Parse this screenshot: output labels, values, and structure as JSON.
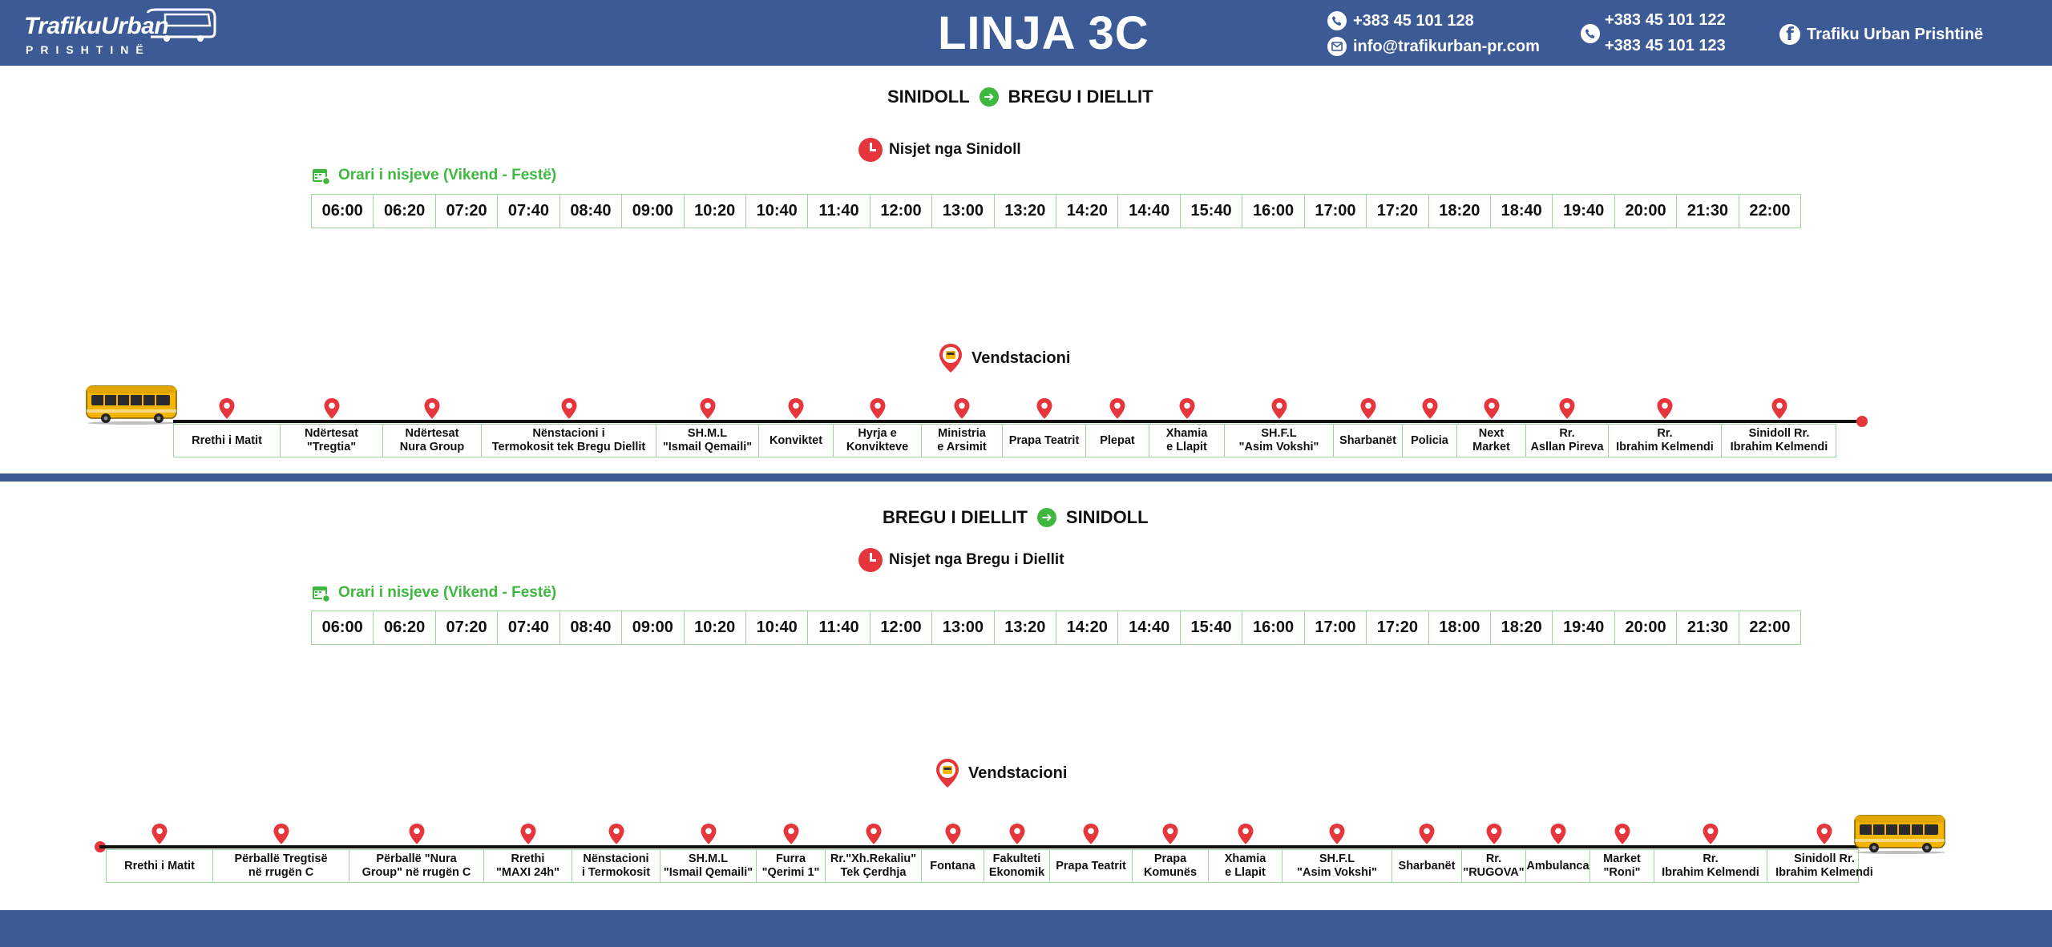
{
  "header": {
    "logo_main": "TrafikuUrban",
    "logo_sub": "PRISHTINË",
    "title": "LINJA 3C",
    "phone_1": "+383 45 101 128",
    "email": "info@trafikurban-pr.com",
    "viber_phone_1": "+383 45 101 122",
    "viber_phone_2": "+383 45 101 123",
    "facebook": "Trafiku Urban Prishtinë"
  },
  "colors": {
    "brand": "#3b5a96",
    "accent_green": "#3fb83f",
    "marker_red": "#e6363b",
    "bus_yellow": "#f4b400"
  },
  "outbound": {
    "from": "SINIDOLL",
    "to": "BREGU I DIELLIT",
    "departures_label": "Nisjet nga Sinidoll",
    "schedule_label": "Orari i nisjeve (Vikend - Festë)",
    "times": [
      "06:00",
      "06:20",
      "07:20",
      "07:40",
      "08:40",
      "09:00",
      "10:20",
      "10:40",
      "11:40",
      "12:00",
      "13:00",
      "13:20",
      "14:20",
      "14:40",
      "15:40",
      "16:00",
      "17:00",
      "17:20",
      "18:20",
      "18:40",
      "19:40",
      "20:00",
      "21:30",
      "22:00"
    ],
    "terminal_label": "Vendstacioni",
    "stops": [
      "Rrethi i Matit",
      "Ndërtesat\n\"Tregtia\"",
      "Ndërtesat\nNura Group",
      "Nënstacioni i\nTermokosit tek Bregu Diellit",
      "SH.M.L\n\"Ismail Qemaili\"",
      "Konviktet",
      "Hyrja e\nKonvikteve",
      "Ministria\ne Arsimit",
      "Prapa Teatrit",
      "Plepat",
      "Xhamia\ne Llapit",
      "SH.F.L\n\"Asim Vokshi\"",
      "Sharbanët",
      "Policia",
      "Next\nMarket",
      "Rr.\nAsllan Pireva",
      "Rr.\nIbrahim Kelmendi",
      "Sinidoll Rr.\nIbrahim Kelmendi"
    ]
  },
  "inbound": {
    "from": "BREGU I DIELLIT",
    "to": "SINIDOLL",
    "departures_label": "Nisjet nga Bregu i Diellit",
    "schedule_label": "Orari i nisjeve (Vikend - Festë)",
    "times": [
      "06:00",
      "06:20",
      "07:20",
      "07:40",
      "08:40",
      "09:00",
      "10:20",
      "10:40",
      "11:40",
      "12:00",
      "13:00",
      "13:20",
      "14:20",
      "14:40",
      "15:40",
      "16:00",
      "17:00",
      "17:20",
      "18:00",
      "18:20",
      "19:40",
      "20:00",
      "21:30",
      "22:00"
    ],
    "terminal_label": "Vendstacioni",
    "stops": [
      "Rrethi i Matit",
      "Përballë Tregtisë\nnë rrugën C",
      "Përballë \"Nura\nGroup\" në rrugën C",
      "Rrethi\n\"MAXI 24h\"",
      "Nënstacioni\ni Termokosit",
      "SH.M.L\n\"Ismail Qemaili\"",
      "Furra\n\"Qerimi 1\"",
      "Rr.\"Xh.Rekaliu\"\nTek Çerdhja",
      "Fontana",
      "Fakulteti\nEkonomik",
      "Prapa Teatrit",
      "Prapa\nKomunës",
      "Xhamia\ne Llapit",
      "SH.F.L\n\"Asim Vokshi\"",
      "Sharbanët",
      "Rr.\n\"RUGOVA\"",
      "Ambulanca",
      "Market\n\"Roni\"",
      "Rr.\nIbrahim Kelmendi",
      "Sinidoll Rr.\nIbrahim Kelmendi"
    ]
  }
}
